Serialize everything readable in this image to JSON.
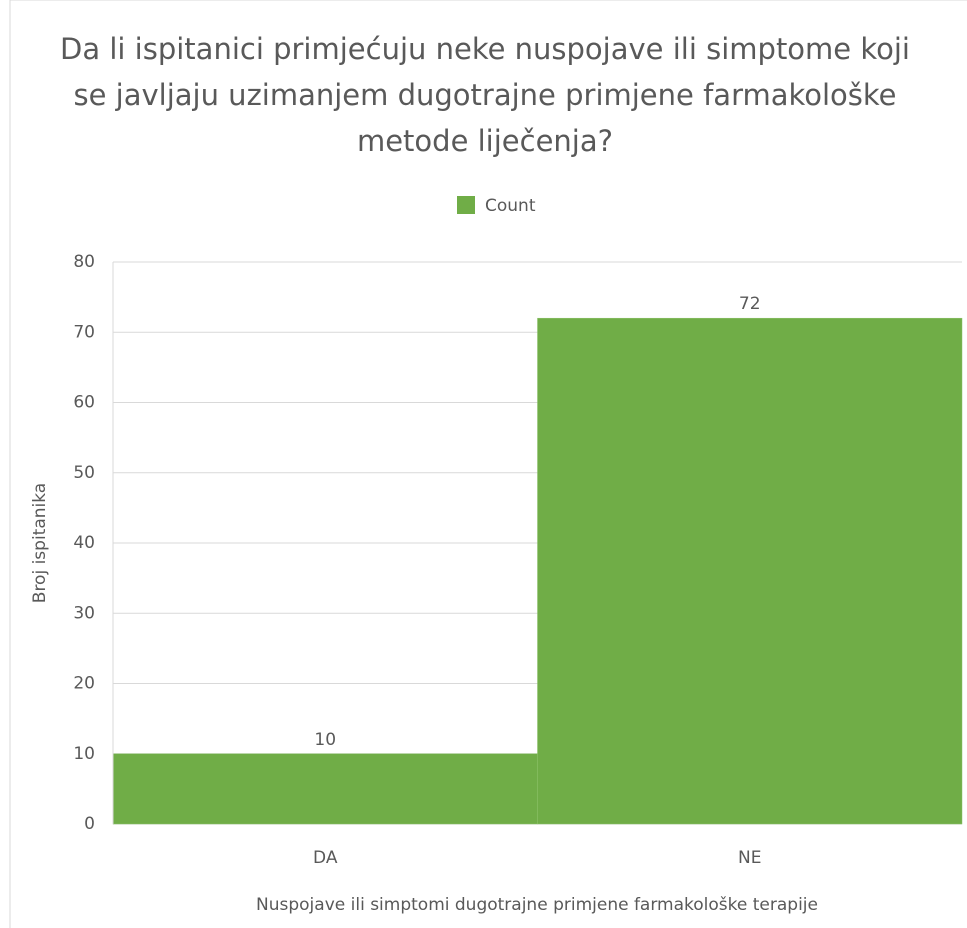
{
  "chart_data": {
    "type": "bar",
    "title": "Da li ispitanici primjećuju neke nuspojave ili simptome koji se javljaju uzimanjem dugotrajne primjene farmakološke metode liječenja?",
    "categories": [
      "DA",
      "NE"
    ],
    "series": [
      {
        "name": "Count",
        "color": "#70ad47",
        "values": [
          10,
          72
        ]
      }
    ],
    "x_label": "Nuspojave ili simptomi dugotrajne primjene farmakološke terapije",
    "y_label": "Broj ispitanika",
    "ylim": [
      0,
      80
    ],
    "yticks": [
      0,
      10,
      20,
      30,
      40,
      50,
      60,
      70,
      80
    ],
    "grid": true,
    "legend": "top"
  }
}
